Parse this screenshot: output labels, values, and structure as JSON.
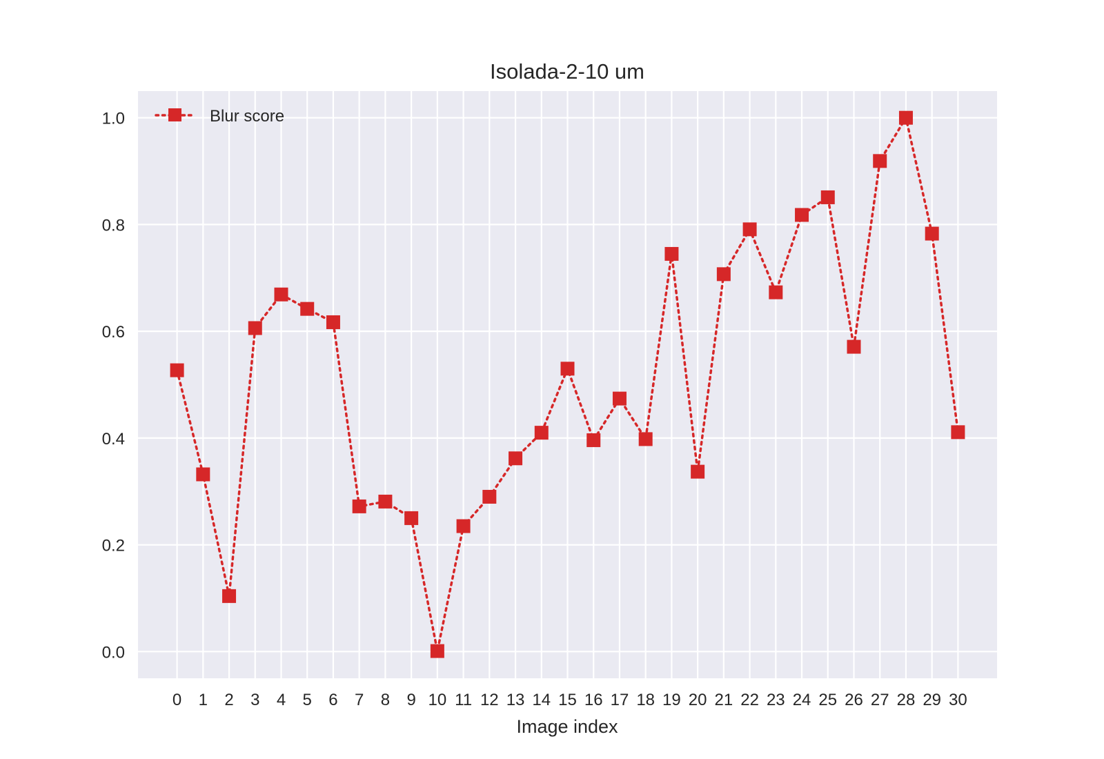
{
  "chart_data": {
    "type": "line",
    "title": "Isolada-2-10 um",
    "xlabel": "Image index",
    "ylabel": "",
    "x": [
      0,
      1,
      2,
      3,
      4,
      5,
      6,
      7,
      8,
      9,
      10,
      11,
      12,
      13,
      14,
      15,
      16,
      17,
      18,
      19,
      20,
      21,
      22,
      23,
      24,
      25,
      26,
      27,
      28,
      29,
      30
    ],
    "xticks": [
      "0",
      "1",
      "2",
      "3",
      "4",
      "5",
      "6",
      "7",
      "8",
      "9",
      "10",
      "11",
      "12",
      "13",
      "14",
      "15",
      "16",
      "17",
      "18",
      "19",
      "20",
      "21",
      "22",
      "23",
      "24",
      "25",
      "26",
      "27",
      "28",
      "29",
      "30"
    ],
    "yticks": [
      "0.0",
      "0.2",
      "0.4",
      "0.6",
      "0.8",
      "1.0"
    ],
    "ytick_values": [
      0.0,
      0.2,
      0.4,
      0.6,
      0.8,
      1.0
    ],
    "xlim": [
      -1.5,
      31.5
    ],
    "ylim": [
      -0.05,
      1.05
    ],
    "grid": true,
    "legend": "upper-left",
    "series": [
      {
        "name": "Blur score",
        "color": "#d62728",
        "linestyle": "dotted",
        "marker": "square",
        "values": [
          0.527,
          0.332,
          0.104,
          0.606,
          0.669,
          0.642,
          0.617,
          0.272,
          0.281,
          0.25,
          0.001,
          0.235,
          0.29,
          0.362,
          0.41,
          0.53,
          0.396,
          0.474,
          0.398,
          0.745,
          0.337,
          0.707,
          0.791,
          0.673,
          0.818,
          0.851,
          0.571,
          0.919,
          1.0,
          0.783,
          0.411
        ]
      }
    ],
    "colors": {
      "background": "#eaeaf2",
      "grid": "#ffffff",
      "text": "#262626"
    }
  }
}
